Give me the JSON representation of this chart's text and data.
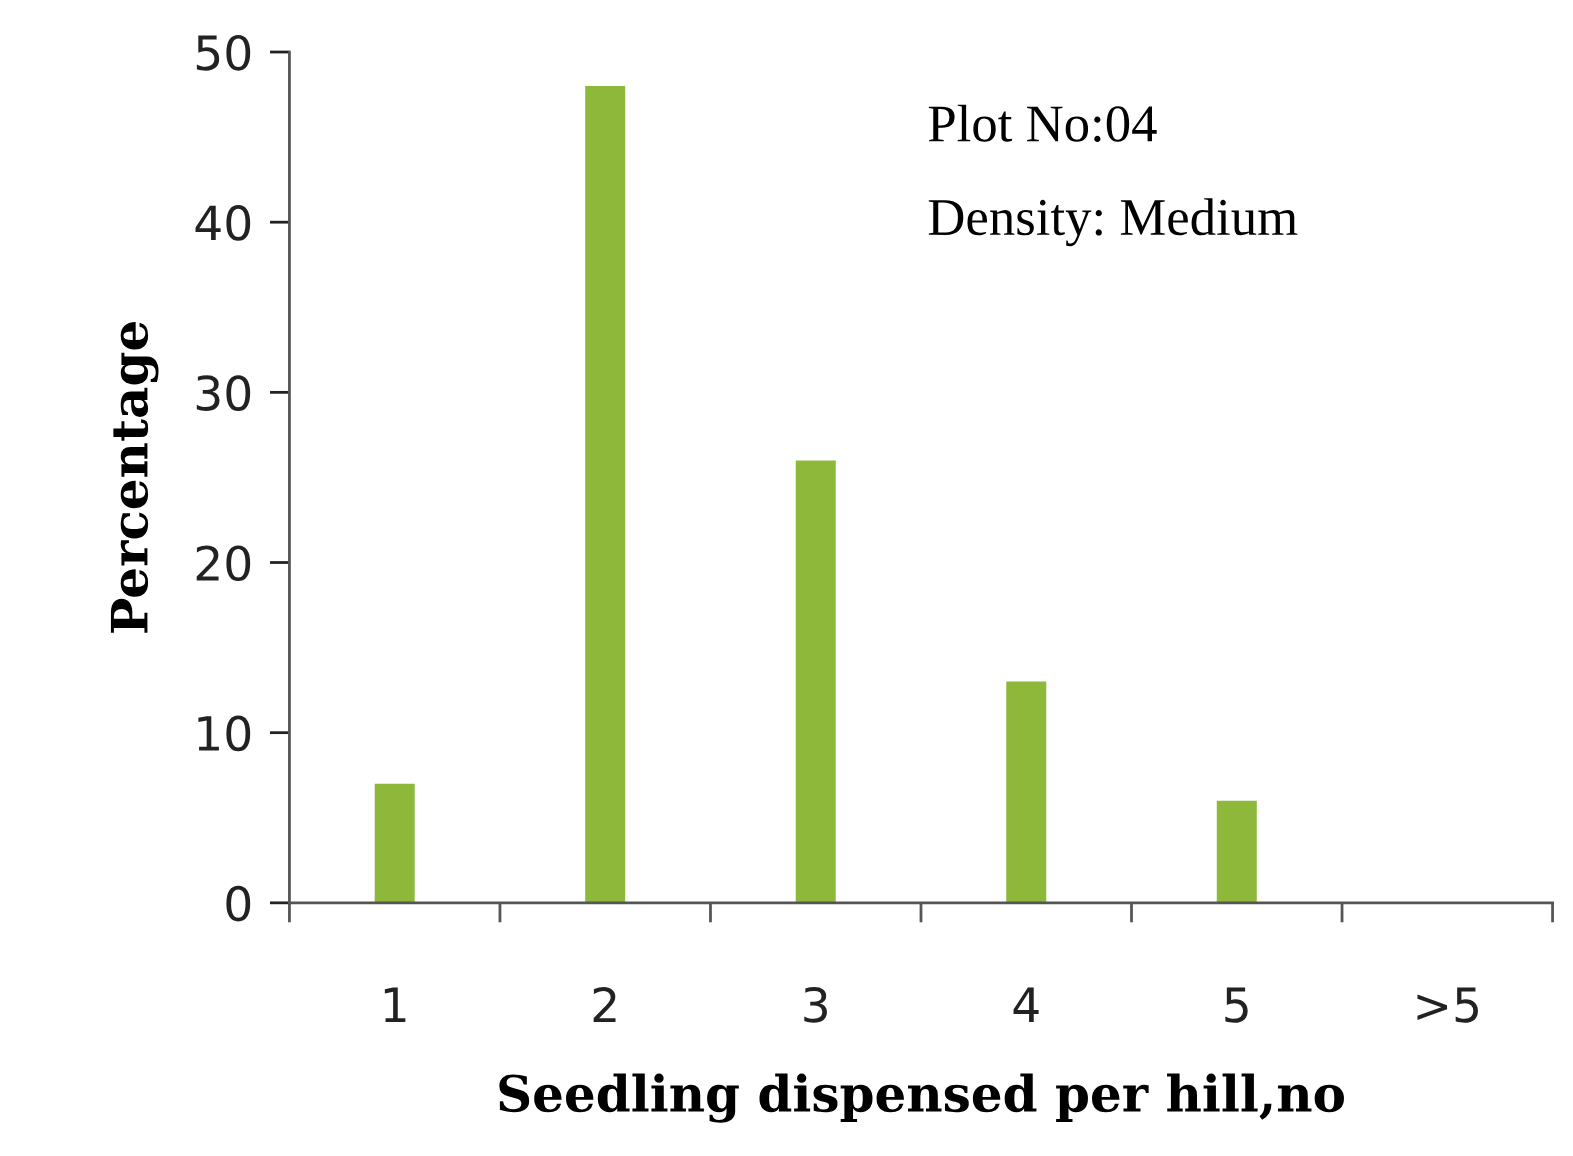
{
  "chart_data": {
    "type": "bar",
    "xlabel": "Seedling dispensed per hill,no",
    "ylabel": "Percentage",
    "categories": [
      "1",
      "2",
      "3",
      "4",
      "5",
      ">5"
    ],
    "values": [
      7,
      48,
      26,
      13,
      6,
      0
    ],
    "color": "#8db83a",
    "ylim": [
      0,
      50
    ],
    "yticks": [
      0,
      10,
      20,
      30,
      40,
      50
    ],
    "grid": false,
    "legend": false,
    "annotations": [
      "Plot No:04",
      "Density: Medium"
    ]
  }
}
